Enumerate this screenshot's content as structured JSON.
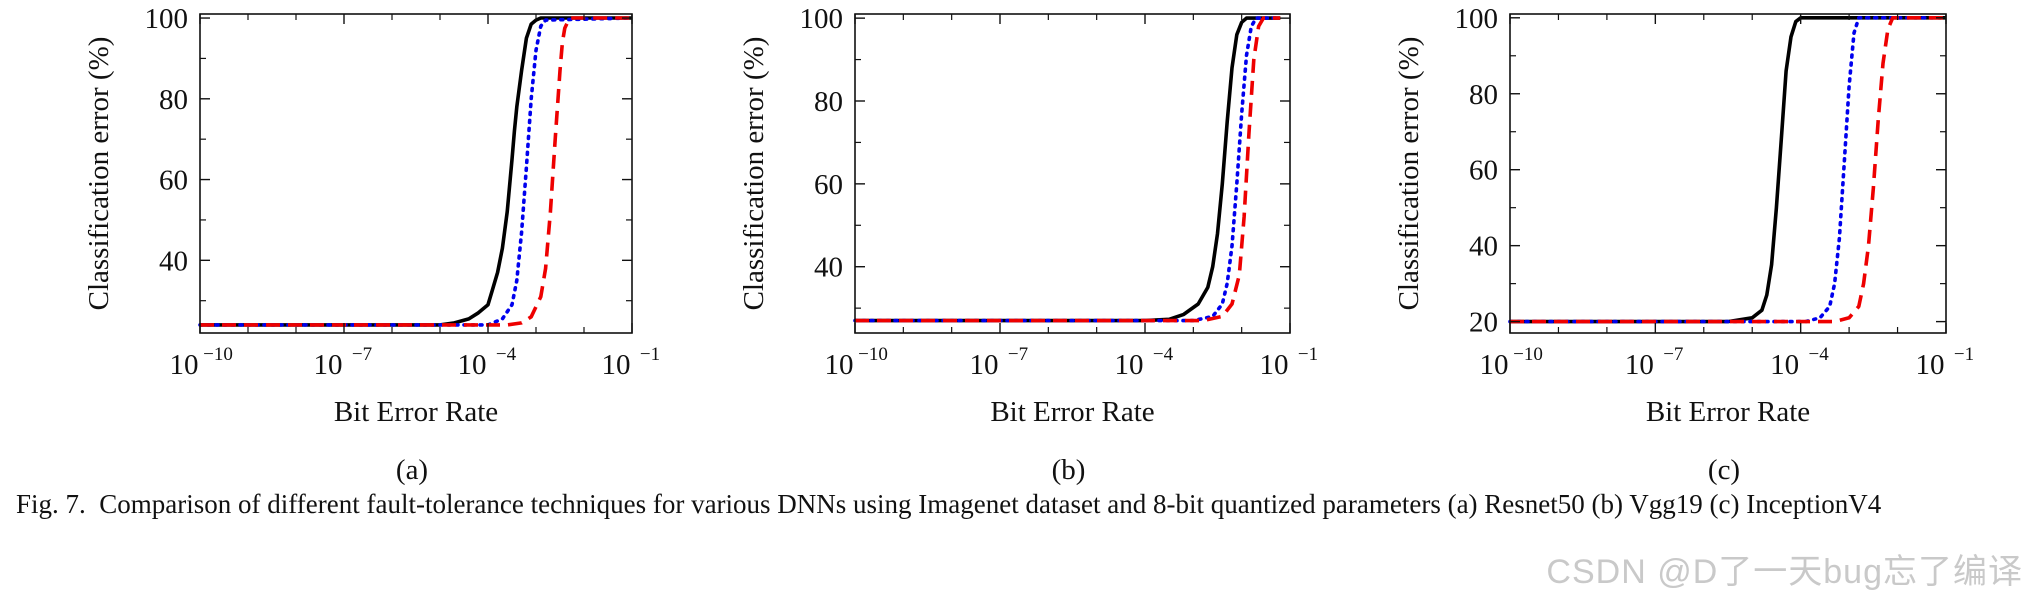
{
  "figure": {
    "caption_label": "Fig. 7.",
    "caption_text": "Comparison of different fault-tolerance techniques for various DNNs using Imagenet dataset and 8-bit quantized parameters (a) Resnet50 (b) Vgg19 (c) InceptionV4",
    "watermark": "CSDN @D了一天bug忘了编译"
  },
  "styles": {
    "series_colors": [
      "#000000",
      "#0000ee",
      "#ee0000"
    ]
  },
  "chart_data": [
    {
      "type": "line",
      "panel_label": "(a)",
      "xlabel": "Bit Error Rate",
      "ylabel": "Classification error (%)",
      "xscale": "log",
      "xlim_log10": [
        -10,
        -1
      ],
      "ylim": [
        22,
        101
      ],
      "xtick_exponents": [
        "−10",
        "−7",
        "−4",
        "−1"
      ],
      "ytick_values": [
        40,
        60,
        80,
        100
      ],
      "series": [
        {
          "name": "series-1",
          "style": "solid",
          "x_log10": [
            -10,
            -5,
            -4.7,
            -4.4,
            -4.2,
            -4.0,
            -3.9,
            -3.8,
            -3.7,
            -3.6,
            -3.5,
            -3.45,
            -3.4,
            -3.3,
            -3.2,
            -3.1,
            -3.0,
            -2.9,
            -2.8,
            -1
          ],
          "y": [
            24,
            24,
            24.5,
            25.5,
            27,
            29,
            33,
            37,
            43,
            52,
            65,
            72,
            78,
            87,
            95,
            98.5,
            99.5,
            100,
            100,
            100
          ]
        },
        {
          "name": "series-2",
          "style": "dotted",
          "x_log10": [
            -10,
            -4.0,
            -3.7,
            -3.5,
            -3.4,
            -3.3,
            -3.2,
            -3.1,
            -3.0,
            -2.9,
            -2.8,
            -1
          ],
          "y": [
            24,
            24,
            25.5,
            29,
            35,
            47,
            63,
            80,
            92,
            98,
            99.5,
            100
          ]
        },
        {
          "name": "series-3",
          "style": "dashed",
          "x_log10": [
            -10,
            -3.6,
            -3.3,
            -3.1,
            -2.9,
            -2.8,
            -2.7,
            -2.6,
            -2.5,
            -2.45,
            -2.4,
            -2.3,
            -1
          ],
          "y": [
            24,
            24,
            24.5,
            26,
            31,
            38,
            52,
            70,
            87,
            94,
            97.5,
            100,
            100
          ]
        }
      ]
    },
    {
      "type": "line",
      "panel_label": "(b)",
      "xlabel": "Bit Error Rate",
      "ylabel": "Classification error (%)",
      "xscale": "log",
      "xlim_log10": [
        -10,
        -1
      ],
      "ylim": [
        24,
        101
      ],
      "xtick_exponents": [
        "−10",
        "−7",
        "−4",
        "−1"
      ],
      "ytick_values": [
        40,
        60,
        80,
        100
      ],
      "series": [
        {
          "name": "series-1",
          "style": "solid",
          "x_log10": [
            -10,
            -4.0,
            -3.5,
            -3.2,
            -2.9,
            -2.7,
            -2.6,
            -2.5,
            -2.4,
            -2.3,
            -2.2,
            -2.1,
            -2.0,
            -1.9,
            -1.8,
            -1.2
          ],
          "y": [
            27,
            27,
            27.3,
            28.5,
            31,
            35,
            40,
            48,
            60,
            75,
            88,
            96,
            99,
            100,
            100,
            100
          ]
        },
        {
          "name": "series-2",
          "style": "dotted",
          "x_log10": [
            -10,
            -3.0,
            -2.6,
            -2.4,
            -2.3,
            -2.2,
            -2.1,
            -2.0,
            -1.9,
            -1.8,
            -1.7,
            -1.2
          ],
          "y": [
            27,
            27,
            28,
            31,
            36,
            45,
            60,
            77,
            91,
            98,
            100,
            100
          ]
        },
        {
          "name": "series-3",
          "style": "dashed",
          "x_log10": [
            -10,
            -2.8,
            -2.4,
            -2.2,
            -2.05,
            -1.95,
            -1.85,
            -1.75,
            -1.65,
            -1.55,
            -1.2
          ],
          "y": [
            27,
            27,
            28,
            31,
            38,
            52,
            72,
            90,
            98,
            100,
            100
          ]
        }
      ]
    },
    {
      "type": "line",
      "panel_label": "(c)",
      "xlabel": "Bit Error Rate",
      "ylabel": "Classification error (%)",
      "xscale": "log",
      "xlim_log10": [
        -10,
        -1
      ],
      "ylim": [
        17,
        101
      ],
      "xtick_exponents": [
        "−10",
        "−7",
        "−4",
        "−1"
      ],
      "ytick_values": [
        20,
        40,
        60,
        80,
        100
      ],
      "series": [
        {
          "name": "series-1",
          "style": "solid",
          "x_log10": [
            -10,
            -5.5,
            -5.0,
            -4.8,
            -4.7,
            -4.6,
            -4.5,
            -4.4,
            -4.3,
            -4.2,
            -4.1,
            -4.0,
            -1
          ],
          "y": [
            20,
            20,
            21,
            23,
            27,
            35,
            50,
            68,
            86,
            95,
            99,
            100,
            100
          ]
        },
        {
          "name": "series-2",
          "style": "dotted",
          "x_log10": [
            -10,
            -3.9,
            -3.6,
            -3.4,
            -3.3,
            -3.2,
            -3.1,
            -3.0,
            -2.9,
            -2.8,
            -1
          ],
          "y": [
            20,
            20,
            21,
            24,
            30,
            42,
            62,
            82,
            96,
            100,
            100
          ]
        },
        {
          "name": "series-3",
          "style": "dashed",
          "x_log10": [
            -10,
            -3.3,
            -3.0,
            -2.8,
            -2.7,
            -2.6,
            -2.5,
            -2.4,
            -2.3,
            -2.2,
            -2.1,
            -1
          ],
          "y": [
            20,
            20,
            21,
            24,
            30,
            40,
            55,
            73,
            88,
            97,
            100,
            100
          ]
        }
      ]
    }
  ]
}
